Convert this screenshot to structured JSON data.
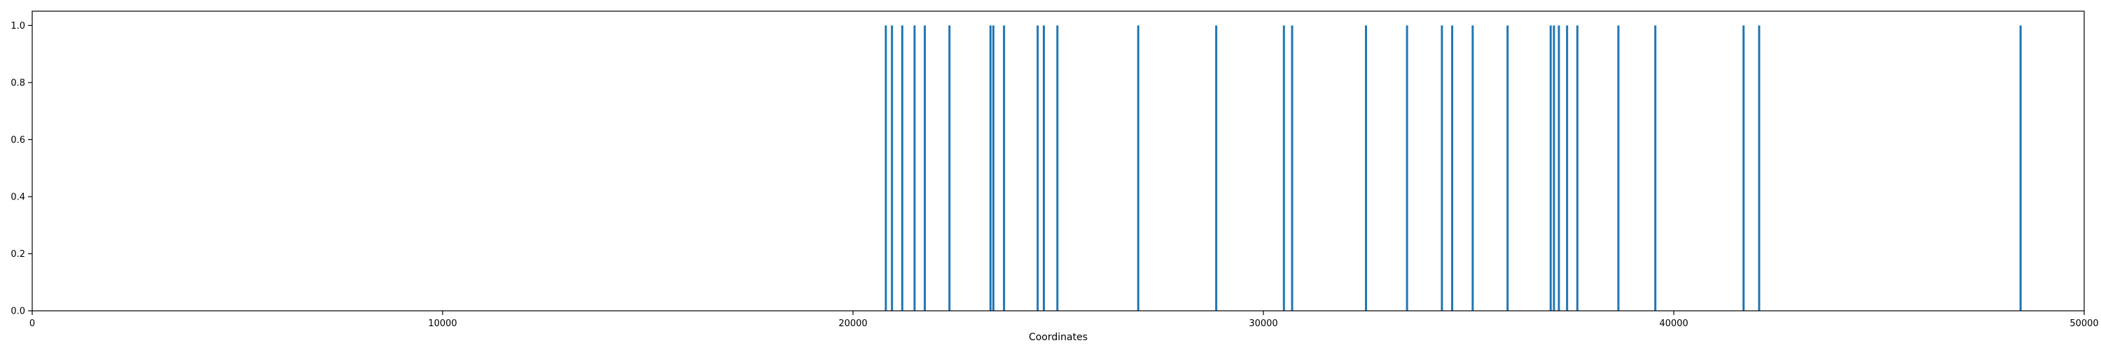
{
  "chart_data": {
    "type": "bar",
    "title": "",
    "xlabel": "Coordinates",
    "ylabel": "",
    "xlim": [
      0,
      50000
    ],
    "ylim": [
      0.0,
      1.05
    ],
    "grid": false,
    "legend": "none",
    "x_ticks": [
      0,
      10000,
      20000,
      30000,
      40000,
      50000
    ],
    "x_tick_labels": [
      "0",
      "10000",
      "20000",
      "30000",
      "40000",
      "50000"
    ],
    "y_ticks": [
      0.0,
      0.2,
      0.4,
      0.6,
      0.8,
      1.0
    ],
    "y_tick_labels": [
      "0.0",
      "0.2",
      "0.4",
      "0.6",
      "0.8",
      "1.0"
    ],
    "bar_color": "#1f77b4",
    "series": [
      {
        "x": [
          20800,
          20950,
          21200,
          21500,
          21750,
          22350,
          23350,
          23420,
          23680,
          24500,
          24650,
          24980,
          26950,
          28850,
          30500,
          30700,
          32500,
          33500,
          34350,
          34600,
          35100,
          35950,
          37000,
          37080,
          37200,
          37400,
          37650,
          38650,
          39550,
          41700,
          42080,
          48450
        ],
        "values": [
          1,
          1,
          1,
          1,
          1,
          1,
          1,
          1,
          1,
          1,
          1,
          1,
          1,
          1,
          1,
          1,
          1,
          1,
          1,
          1,
          1,
          1,
          1,
          1,
          1,
          1,
          1,
          1,
          1,
          1,
          1,
          1
        ]
      }
    ]
  }
}
